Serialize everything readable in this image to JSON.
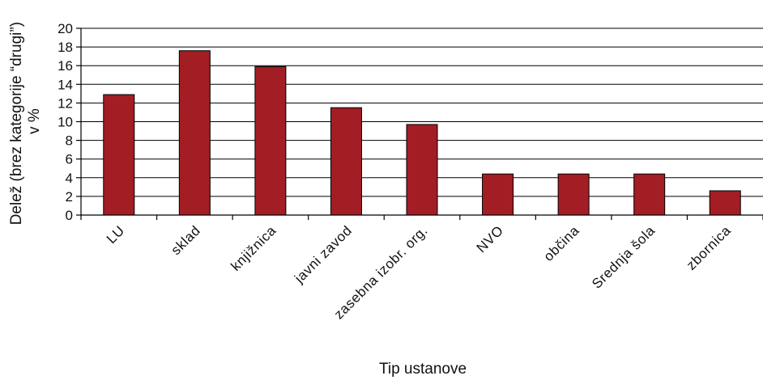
{
  "chart_data": {
    "type": "bar",
    "xlabel": "Tip ustanove",
    "ylabel_lines": [
      "Delež (brez kategorije “drugi”)",
      "v %"
    ],
    "categories": [
      "LU",
      "sklad",
      "knjižnica",
      "javni zavod",
      "zasebna izobr. org.",
      "NVO",
      "občina",
      "Srednja šola",
      "zbornica"
    ],
    "values": [
      12.9,
      17.6,
      15.9,
      11.5,
      9.7,
      4.4,
      4.4,
      4.4,
      2.6
    ],
    "ylim": [
      0,
      20
    ],
    "yticks": [
      "0",
      "2",
      "4",
      "6",
      "8",
      "10",
      "12",
      "14",
      "16",
      "18",
      "20"
    ],
    "grid": true,
    "legend": "none",
    "colors": {
      "bar": "#A31D24",
      "bar_edge": "#000000",
      "grid": "#000000"
    }
  }
}
